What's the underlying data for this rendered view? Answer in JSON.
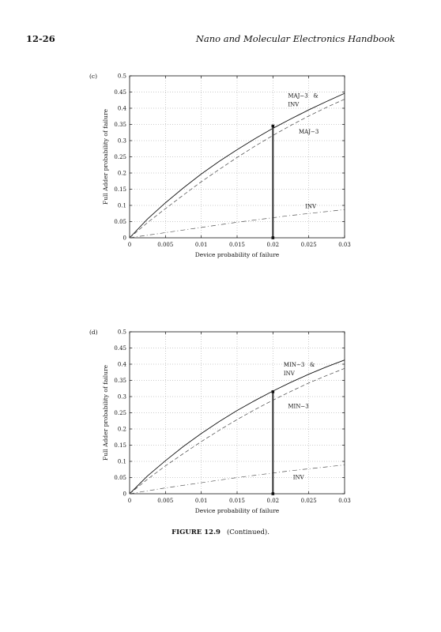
{
  "header": {
    "page_number": "12-26",
    "book_title": "Nano and Molecular Electronics Handbook"
  },
  "caption": {
    "label": "FIGURE 12.9",
    "text": "(Continued)."
  },
  "chart_data": [
    {
      "type": "line",
      "panel_label": "(c)",
      "xlabel": "Device probability of failure",
      "ylabel": "Full Adder probability of failure",
      "xlim": [
        0,
        0.03
      ],
      "ylim": [
        0,
        0.5
      ],
      "xticks": [
        0,
        0.005,
        0.01,
        0.015,
        0.02,
        0.025,
        0.03
      ],
      "xtick_labels": [
        "0",
        "0.005",
        "0.01",
        "0.015",
        "0.02",
        "0.025",
        "0.03"
      ],
      "yticks": [
        0,
        0.05,
        0.1,
        0.15,
        0.2,
        0.25,
        0.3,
        0.35,
        0.4,
        0.45,
        0.5
      ],
      "ytick_labels": [
        "0",
        "0.05",
        "0.1",
        "0.15",
        "0.2",
        "0.25",
        "0.3",
        "0.35",
        "0.4",
        "0.45",
        "0.5"
      ],
      "grid": true,
      "x": [
        0,
        0.0025,
        0.005,
        0.0075,
        0.01,
        0.0125,
        0.015,
        0.0175,
        0.02,
        0.0225,
        0.025,
        0.0275,
        0.03
      ],
      "series": [
        {
          "style": "solid",
          "color": "#111111",
          "values": [
            0,
            0.058,
            0.108,
            0.154,
            0.197,
            0.236,
            0.272,
            0.306,
            0.338,
            0.367,
            0.395,
            0.421,
            0.446
          ]
        },
        {
          "style": "dashed",
          "color": "#444444",
          "values": [
            0,
            0.047,
            0.09,
            0.132,
            0.173,
            0.211,
            0.248,
            0.283,
            0.316,
            0.347,
            0.376,
            0.403,
            0.428
          ]
        },
        {
          "style": "dashdot",
          "color": "#555555",
          "values": [
            0,
            0.008,
            0.016,
            0.024,
            0.032,
            0.04,
            0.048,
            0.055,
            0.062,
            0.069,
            0.075,
            0.081,
            0.087
          ]
        }
      ],
      "marker_line": {
        "x": 0.02,
        "y_bottom": 0,
        "y_top": 0.345
      },
      "annotations": [
        {
          "line1": "MAJ−3   &",
          "line2": "INV",
          "x": 0.0221,
          "y": 0.433
        },
        {
          "line1": "MAJ−3",
          "line2": "",
          "x": 0.0236,
          "y": 0.322
        },
        {
          "line1": "INV",
          "line2": "",
          "x": 0.0245,
          "y": 0.092
        }
      ]
    },
    {
      "type": "line",
      "panel_label": "(d)",
      "xlabel": "Device probability of failure",
      "ylabel": "Full Adder probability of failure",
      "xlim": [
        0,
        0.03
      ],
      "ylim": [
        0,
        0.5
      ],
      "xticks": [
        0,
        0.005,
        0.01,
        0.015,
        0.02,
        0.025,
        0.03
      ],
      "xtick_labels": [
        "0",
        "0.005",
        "0.01",
        "0.015",
        "0.02",
        "0.025",
        "0.03"
      ],
      "yticks": [
        0,
        0.05,
        0.1,
        0.15,
        0.2,
        0.25,
        0.3,
        0.35,
        0.4,
        0.45,
        0.5
      ],
      "ytick_labels": [
        "0",
        "0.05",
        "0.1",
        "0.15",
        "0.2",
        "0.25",
        "0.3",
        "0.35",
        "0.4",
        "0.45",
        "0.5"
      ],
      "grid": true,
      "x": [
        0,
        0.0025,
        0.005,
        0.0075,
        0.01,
        0.0125,
        0.015,
        0.0175,
        0.02,
        0.0225,
        0.025,
        0.0275,
        0.03
      ],
      "series": [
        {
          "style": "solid",
          "color": "#111111",
          "values": [
            0,
            0.055,
            0.102,
            0.146,
            0.186,
            0.223,
            0.257,
            0.288,
            0.317,
            0.344,
            0.369,
            0.392,
            0.413
          ]
        },
        {
          "style": "dashed",
          "color": "#444444",
          "values": [
            0,
            0.045,
            0.086,
            0.124,
            0.161,
            0.196,
            0.229,
            0.26,
            0.289,
            0.316,
            0.342,
            0.365,
            0.387
          ]
        },
        {
          "style": "dashdot",
          "color": "#555555",
          "values": [
            0,
            0.009,
            0.018,
            0.026,
            0.034,
            0.042,
            0.05,
            0.057,
            0.064,
            0.071,
            0.077,
            0.083,
            0.089
          ]
        }
      ],
      "marker_line": {
        "x": 0.02,
        "y_bottom": 0,
        "y_top": 0.315
      },
      "annotations": [
        {
          "line1": "MIN−3   &",
          "line2": "INV",
          "x": 0.0215,
          "y": 0.393
        },
        {
          "line1": "MIN−3",
          "line2": "",
          "x": 0.0221,
          "y": 0.265
        },
        {
          "line1": "INV",
          "line2": "",
          "x": 0.0228,
          "y": 0.045
        }
      ]
    }
  ]
}
